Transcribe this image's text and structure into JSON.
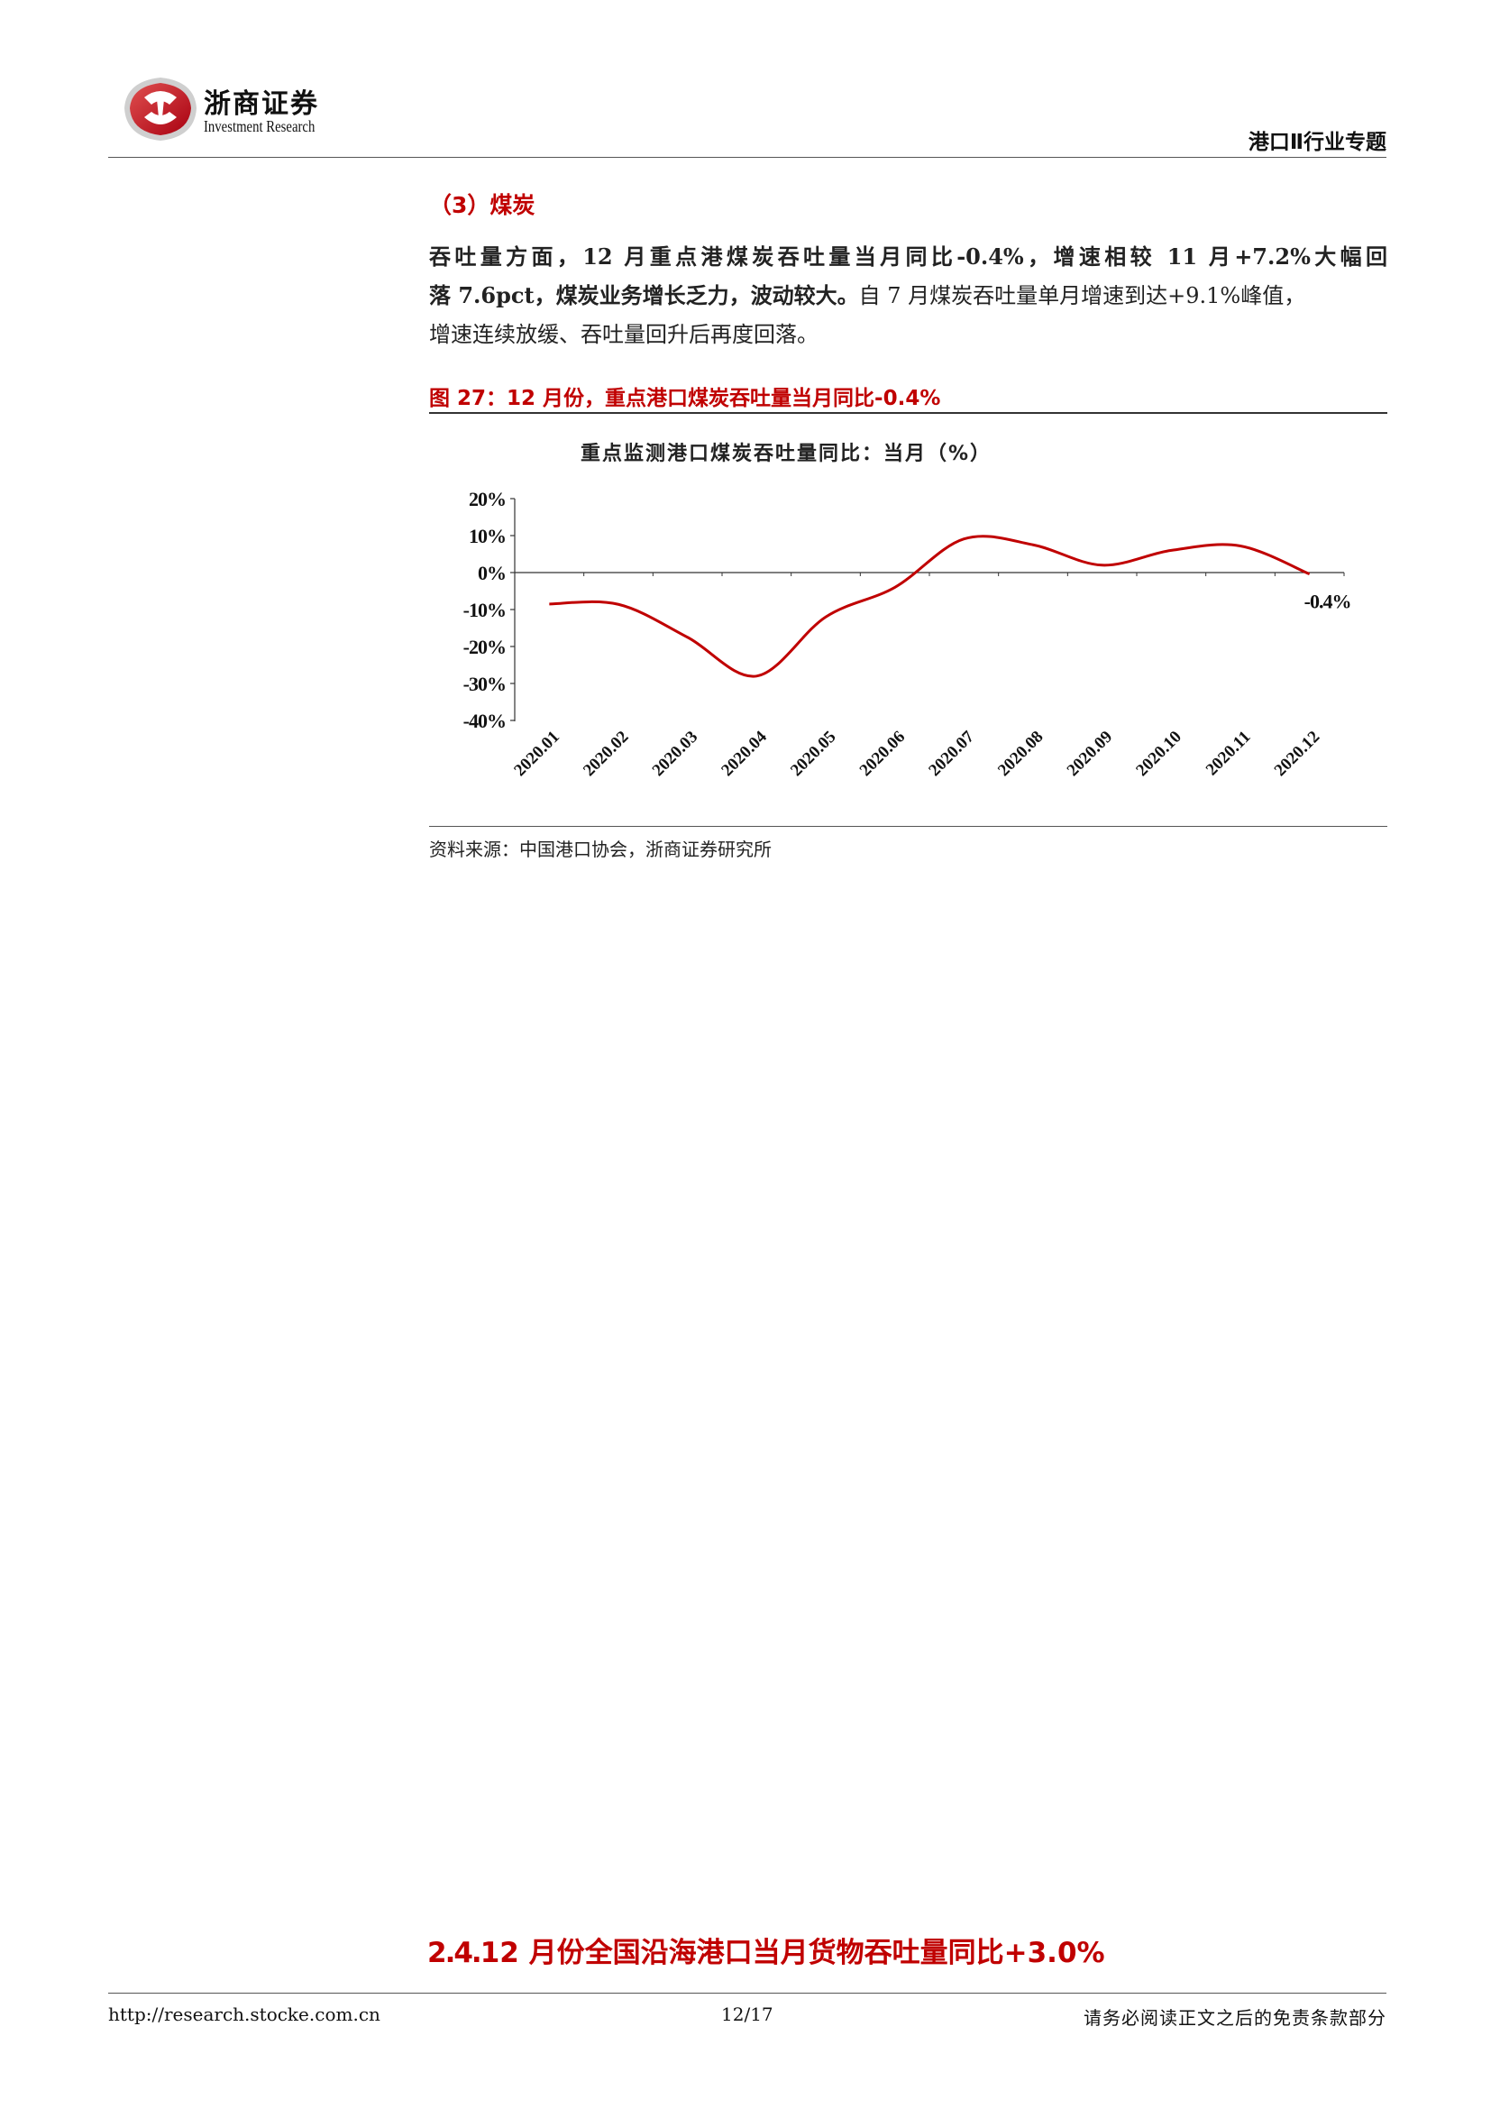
{
  "header": {
    "brand_cn": "浙商证券",
    "brand_en": "Investment Research",
    "doc_type": "港口Ⅱ行业专题"
  },
  "section": {
    "heading": "（3）煤炭",
    "para_bold_1": "吞吐量方面，12 月重点港煤炭吞吐量当月同比-0.4%，增速相较 11 月+7.2%大幅回",
    "para_bold_2": "落 7.6pct，煤炭业务增长乏力，波动较大。",
    "para_normal_2": "自 7 月煤炭吞吐量单月增速到达+9.1%峰值，",
    "para_line_3": "增速连续放缓、吞吐量回升后再度回落。"
  },
  "figure": {
    "caption": "图 27：12 月份，重点港口煤炭吞吐量当月同比-0.4%",
    "source": "资料来源：中国港口协会，浙商证券研究所"
  },
  "chart_data": {
    "type": "line",
    "title": "重点监测港口煤炭吞吐量同比：当月（%）",
    "x": [
      "2020.01",
      "2020.02",
      "2020.03",
      "2020.04",
      "2020.05",
      "2020.06",
      "2020.07",
      "2020.08",
      "2020.09",
      "2020.10",
      "2020.11",
      "2020.12"
    ],
    "series": [
      {
        "values": [
          -8.5,
          -8.6,
          -17.5,
          -28,
          -12,
          -4,
          9.1,
          7.5,
          2,
          6,
          7.2,
          -0.4
        ]
      }
    ],
    "yticks": [
      "20%",
      "10%",
      "0%",
      "-10%",
      "-20%",
      "-30%",
      "-40%"
    ],
    "ylim": [
      -40,
      20
    ],
    "data_label": "-0.4%",
    "line_color": "#c00000",
    "grid": false,
    "legend": "none"
  },
  "next_section": {
    "number": "2.4.",
    "title": "12 月份全国沿海港口当月货物吞吐量同比+3.0%"
  },
  "footer": {
    "url": "http://research.stocke.com.cn",
    "page": "12/17",
    "disclaimer": "请务必阅读正文之后的免责条款部分"
  },
  "colors": {
    "accent": "#c00000",
    "text": "#222222"
  }
}
